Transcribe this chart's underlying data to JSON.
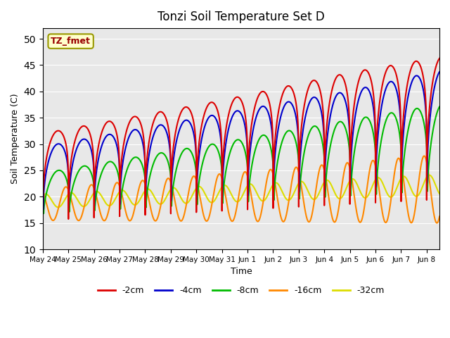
{
  "title": "Tonzi Soil Temperature Set D",
  "xlabel": "Time",
  "ylabel": "Soil Temperature (C)",
  "ylim": [
    10,
    52
  ],
  "xlim_days": [
    0,
    15.5
  ],
  "bg_color": "#e8e8e8",
  "grid_color": "white",
  "annotation_text": "TZ_fmet",
  "annotation_bg": "#ffffcc",
  "annotation_border": "#999900",
  "annotation_text_color": "#990000",
  "series": [
    {
      "label": "-2cm",
      "color": "#dd0000"
    },
    {
      "label": "-4cm",
      "color": "#0000cc"
    },
    {
      "label": "-8cm",
      "color": "#00bb00"
    },
    {
      "label": "-16cm",
      "color": "#ff8800"
    },
    {
      "label": "-32cm",
      "color": "#dddd00"
    }
  ],
  "xtick_labels": [
    "May 24",
    "May 25",
    "May 26",
    "May 27",
    "May 28",
    "May 29",
    "May 30",
    "May 31",
    "Jun 1",
    "Jun 2",
    "Jun 3",
    "Jun 4",
    "Jun 5",
    "Jun 6",
    "Jun 7",
    "Jun 8"
  ],
  "xtick_positions": [
    0,
    1,
    2,
    3,
    4,
    5,
    6,
    7,
    8,
    9,
    10,
    11,
    12,
    13,
    14,
    15
  ]
}
